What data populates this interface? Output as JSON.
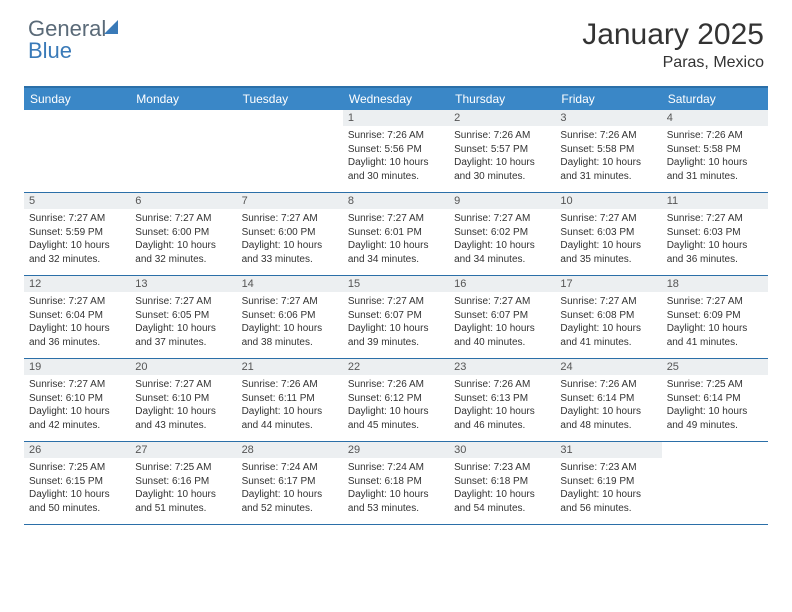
{
  "logo": {
    "general": "General",
    "blue": "Blue"
  },
  "title": "January 2025",
  "location": "Paras, Mexico",
  "colors": {
    "header_bg": "#3a87c7",
    "border": "#2b6fa8",
    "daynum_bg": "#eceff1",
    "text": "#333333",
    "logo_gray": "#5a6a78",
    "logo_blue": "#3a7ab8"
  },
  "day_names": [
    "Sunday",
    "Monday",
    "Tuesday",
    "Wednesday",
    "Thursday",
    "Friday",
    "Saturday"
  ],
  "weeks": [
    [
      {
        "empty": true
      },
      {
        "empty": true
      },
      {
        "empty": true
      },
      {
        "n": "1",
        "sunrise": "7:26 AM",
        "sunset": "5:56 PM",
        "dh": "10",
        "dm": "30"
      },
      {
        "n": "2",
        "sunrise": "7:26 AM",
        "sunset": "5:57 PM",
        "dh": "10",
        "dm": "30"
      },
      {
        "n": "3",
        "sunrise": "7:26 AM",
        "sunset": "5:58 PM",
        "dh": "10",
        "dm": "31"
      },
      {
        "n": "4",
        "sunrise": "7:26 AM",
        "sunset": "5:58 PM",
        "dh": "10",
        "dm": "31"
      }
    ],
    [
      {
        "n": "5",
        "sunrise": "7:27 AM",
        "sunset": "5:59 PM",
        "dh": "10",
        "dm": "32"
      },
      {
        "n": "6",
        "sunrise": "7:27 AM",
        "sunset": "6:00 PM",
        "dh": "10",
        "dm": "32"
      },
      {
        "n": "7",
        "sunrise": "7:27 AM",
        "sunset": "6:00 PM",
        "dh": "10",
        "dm": "33"
      },
      {
        "n": "8",
        "sunrise": "7:27 AM",
        "sunset": "6:01 PM",
        "dh": "10",
        "dm": "34"
      },
      {
        "n": "9",
        "sunrise": "7:27 AM",
        "sunset": "6:02 PM",
        "dh": "10",
        "dm": "34"
      },
      {
        "n": "10",
        "sunrise": "7:27 AM",
        "sunset": "6:03 PM",
        "dh": "10",
        "dm": "35"
      },
      {
        "n": "11",
        "sunrise": "7:27 AM",
        "sunset": "6:03 PM",
        "dh": "10",
        "dm": "36"
      }
    ],
    [
      {
        "n": "12",
        "sunrise": "7:27 AM",
        "sunset": "6:04 PM",
        "dh": "10",
        "dm": "36"
      },
      {
        "n": "13",
        "sunrise": "7:27 AM",
        "sunset": "6:05 PM",
        "dh": "10",
        "dm": "37"
      },
      {
        "n": "14",
        "sunrise": "7:27 AM",
        "sunset": "6:06 PM",
        "dh": "10",
        "dm": "38"
      },
      {
        "n": "15",
        "sunrise": "7:27 AM",
        "sunset": "6:07 PM",
        "dh": "10",
        "dm": "39"
      },
      {
        "n": "16",
        "sunrise": "7:27 AM",
        "sunset": "6:07 PM",
        "dh": "10",
        "dm": "40"
      },
      {
        "n": "17",
        "sunrise": "7:27 AM",
        "sunset": "6:08 PM",
        "dh": "10",
        "dm": "41"
      },
      {
        "n": "18",
        "sunrise": "7:27 AM",
        "sunset": "6:09 PM",
        "dh": "10",
        "dm": "41"
      }
    ],
    [
      {
        "n": "19",
        "sunrise": "7:27 AM",
        "sunset": "6:10 PM",
        "dh": "10",
        "dm": "42"
      },
      {
        "n": "20",
        "sunrise": "7:27 AM",
        "sunset": "6:10 PM",
        "dh": "10",
        "dm": "43"
      },
      {
        "n": "21",
        "sunrise": "7:26 AM",
        "sunset": "6:11 PM",
        "dh": "10",
        "dm": "44"
      },
      {
        "n": "22",
        "sunrise": "7:26 AM",
        "sunset": "6:12 PM",
        "dh": "10",
        "dm": "45"
      },
      {
        "n": "23",
        "sunrise": "7:26 AM",
        "sunset": "6:13 PM",
        "dh": "10",
        "dm": "46"
      },
      {
        "n": "24",
        "sunrise": "7:26 AM",
        "sunset": "6:14 PM",
        "dh": "10",
        "dm": "48"
      },
      {
        "n": "25",
        "sunrise": "7:25 AM",
        "sunset": "6:14 PM",
        "dh": "10",
        "dm": "49"
      }
    ],
    [
      {
        "n": "26",
        "sunrise": "7:25 AM",
        "sunset": "6:15 PM",
        "dh": "10",
        "dm": "50"
      },
      {
        "n": "27",
        "sunrise": "7:25 AM",
        "sunset": "6:16 PM",
        "dh": "10",
        "dm": "51"
      },
      {
        "n": "28",
        "sunrise": "7:24 AM",
        "sunset": "6:17 PM",
        "dh": "10",
        "dm": "52"
      },
      {
        "n": "29",
        "sunrise": "7:24 AM",
        "sunset": "6:18 PM",
        "dh": "10",
        "dm": "53"
      },
      {
        "n": "30",
        "sunrise": "7:23 AM",
        "sunset": "6:18 PM",
        "dh": "10",
        "dm": "54"
      },
      {
        "n": "31",
        "sunrise": "7:23 AM",
        "sunset": "6:19 PM",
        "dh": "10",
        "dm": "56"
      },
      {
        "empty": true
      }
    ]
  ],
  "labels": {
    "sunrise": "Sunrise:",
    "sunset": "Sunset:",
    "daylight": "Daylight:",
    "hours_word": "hours",
    "and_word": "and",
    "minutes_word": "minutes."
  }
}
